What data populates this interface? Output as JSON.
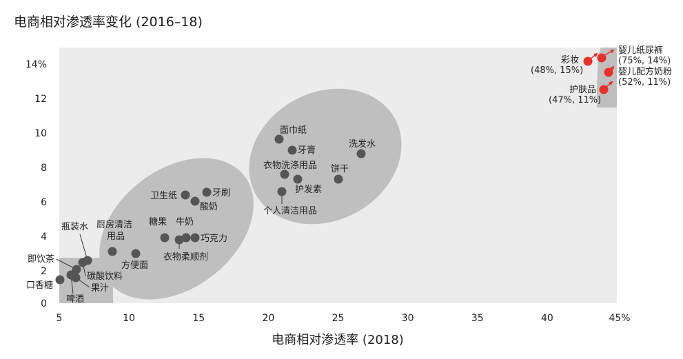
{
  "chart_data": {
    "type": "scatter",
    "title": "电商相对渗透率变化 (2016–18)",
    "xlabel": "电商相对渗透率 (2018)",
    "ylabel": "",
    "xlim": [
      5,
      45
    ],
    "ylim": [
      0,
      15
    ],
    "x_ticks": [
      "5",
      "10",
      "15",
      "20",
      "25",
      "30",
      "35",
      "40",
      "45%"
    ],
    "y_ticks": [
      "0",
      "2",
      "4",
      "6",
      "8",
      "10",
      "12",
      "14%"
    ],
    "grid": false,
    "legend": "none",
    "colors": {
      "default": "#555555",
      "highlight": "#e8302a",
      "background": "#ececec",
      "cluster": "#bfbfbf"
    },
    "points": [
      {
        "name": "口香糖",
        "x": 5.0,
        "y": 1.4
      },
      {
        "name": "啤酒",
        "x": 5.9,
        "y": 1.6
      },
      {
        "name": "果汁",
        "x": 6.2,
        "y": 1.5
      },
      {
        "name": "即饮茶",
        "x": 6.2,
        "y": 2.0
      },
      {
        "name": "碳酸饮料",
        "x": 6.7,
        "y": 2.4
      },
      {
        "name": "瓶装水",
        "x": 7.0,
        "y": 2.5
      },
      {
        "name": "厨房清洁用品",
        "x": 8.8,
        "y": 3.0
      },
      {
        "name": "方便面",
        "x": 10.5,
        "y": 2.9
      },
      {
        "name": "糖果",
        "x": 12.6,
        "y": 3.8
      },
      {
        "name": "衣物柔顺剂",
        "x": 13.7,
        "y": 3.7
      },
      {
        "name": "牛奶",
        "x": 14.1,
        "y": 3.8
      },
      {
        "name": "巧克力",
        "x": 14.9,
        "y": 3.8
      },
      {
        "name": "卫生纸",
        "x": 14.2,
        "y": 6.3
      },
      {
        "name": "酸奶",
        "x": 14.9,
        "y": 6.0
      },
      {
        "name": "牙刷",
        "x": 15.8,
        "y": 6.5
      },
      {
        "name": "面巾纸",
        "x": 21.0,
        "y": 9.6
      },
      {
        "name": "牙膏",
        "x": 21.9,
        "y": 8.9
      },
      {
        "name": "衣物洗涤用品",
        "x": 21.3,
        "y": 7.5
      },
      {
        "name": "护发素",
        "x": 22.2,
        "y": 7.3
      },
      {
        "name": "个人清洁用品",
        "x": 21.2,
        "y": 6.6
      },
      {
        "name": "饼干",
        "x": 25.2,
        "y": 7.3
      },
      {
        "name": "洗发水",
        "x": 26.8,
        "y": 8.8
      },
      {
        "name": "彩妆",
        "x": 43.0,
        "y": 14.0,
        "highlight": true
      },
      {
        "name": "婴儿纸尿裤",
        "x": 44.0,
        "y": 14.2,
        "highlight": true
      },
      {
        "name": "婴儿配方奶粉",
        "x": 44.5,
        "y": 13.4,
        "highlight": true
      },
      {
        "name": "护肤品",
        "x": 44.0,
        "y": 12.5,
        "highlight": true
      }
    ],
    "off_scale_values": {
      "彩妆": "(48%, 15%)",
      "婴儿纸尿裤": "(75%, 14%)",
      "婴儿配方奶粉": "(52%, 11%)",
      "护肤品": "(47%, 11%)"
    }
  }
}
